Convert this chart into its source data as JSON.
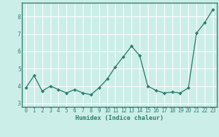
{
  "x": [
    0,
    1,
    2,
    3,
    4,
    5,
    6,
    7,
    8,
    9,
    10,
    11,
    12,
    13,
    14,
    15,
    16,
    17,
    18,
    19,
    20,
    21,
    22,
    23
  ],
  "y": [
    3.9,
    4.6,
    3.7,
    4.0,
    3.8,
    3.6,
    3.8,
    3.6,
    3.5,
    3.9,
    4.4,
    5.1,
    5.7,
    6.3,
    5.75,
    4.0,
    3.75,
    3.6,
    3.65,
    3.6,
    3.9,
    7.05,
    7.65,
    8.4
  ],
  "line_color": "#2e7d6e",
  "marker": "D",
  "markersize": 2.2,
  "linewidth": 1.0,
  "xlabel": "Humidex (Indice chaleur)",
  "xlabel_fontsize": 6.5,
  "xlabel_weight": "bold",
  "ylabel_ticks": [
    3,
    4,
    5,
    6,
    7,
    8
  ],
  "ylim": [
    2.8,
    8.8
  ],
  "xlim": [
    -0.5,
    23.5
  ],
  "background_color": "#cceee8",
  "grid_color": "#ffffff",
  "tick_fontsize": 5.5,
  "xtick_labels": [
    "0",
    "1",
    "2",
    "3",
    "4",
    "5",
    "6",
    "7",
    "8",
    "9",
    "10",
    "11",
    "12",
    "13",
    "14",
    "15",
    "16",
    "17",
    "18",
    "19",
    "20",
    "21",
    "22",
    "23"
  ]
}
